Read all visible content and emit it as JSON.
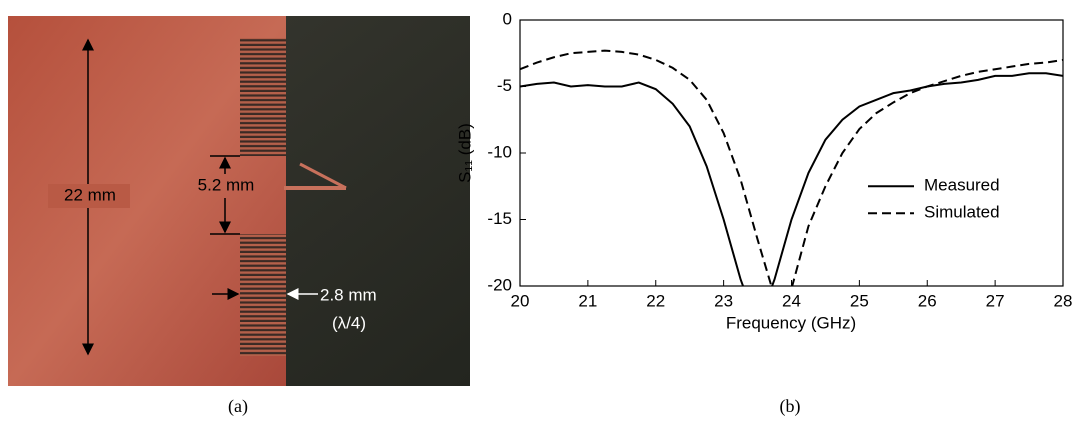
{
  "photo": {
    "height_label": "22 mm",
    "gap_label": "5.2 mm",
    "period_label": "2.8 mm",
    "period_note": "(λ/4)"
  },
  "captions": [
    "(a)",
    "(b)"
  ],
  "chart_data": {
    "type": "line",
    "x_label": "Frequency (GHz)",
    "y_label": "S₁₁ (dB)",
    "x": [
      20,
      20.25,
      20.5,
      20.75,
      21,
      21.25,
      21.5,
      21.75,
      22,
      22.25,
      22.5,
      22.75,
      23,
      23.25,
      23.5,
      23.75,
      24,
      24.25,
      24.5,
      24.75,
      25,
      25.25,
      25.5,
      25.75,
      26,
      26.25,
      26.5,
      26.75,
      27,
      27.25,
      27.5,
      27.75,
      28
    ],
    "series": [
      {
        "name": "Measured",
        "color": "#000000",
        "dash": "solid",
        "values": [
          -5,
          -4.8,
          -4.7,
          -5,
          -4.9,
          -5,
          -5,
          -4.7,
          -5.2,
          -6.3,
          -8,
          -11,
          -15,
          -19.5,
          -23,
          -19.5,
          -15,
          -11.5,
          -9,
          -7.5,
          -6.5,
          -6,
          -5.5,
          -5.3,
          -5,
          -4.8,
          -4.7,
          -4.5,
          -4.2,
          -4.2,
          -4,
          -4,
          -4.2
        ]
      },
      {
        "name": "Simulated",
        "color": "#000000",
        "dash": "dashed",
        "values": [
          -3.7,
          -3.2,
          -2.8,
          -2.5,
          -2.4,
          -2.3,
          -2.4,
          -2.6,
          -3,
          -3.6,
          -4.5,
          -6,
          -8.5,
          -12,
          -16.5,
          -20.8,
          -20.2,
          -15.5,
          -12.5,
          -10,
          -8.2,
          -7,
          -6.2,
          -5.5,
          -5,
          -4.6,
          -4.2,
          -3.9,
          -3.7,
          -3.5,
          -3.3,
          -3.2,
          -3
        ]
      }
    ],
    "xlim": [
      20,
      28
    ],
    "xticks": [
      20,
      21,
      22,
      23,
      24,
      25,
      26,
      27,
      28
    ],
    "ylim": [
      -20,
      0
    ],
    "yticks": [
      0,
      -5,
      -10,
      -15,
      -20
    ],
    "grid": false,
    "legend": "right"
  }
}
